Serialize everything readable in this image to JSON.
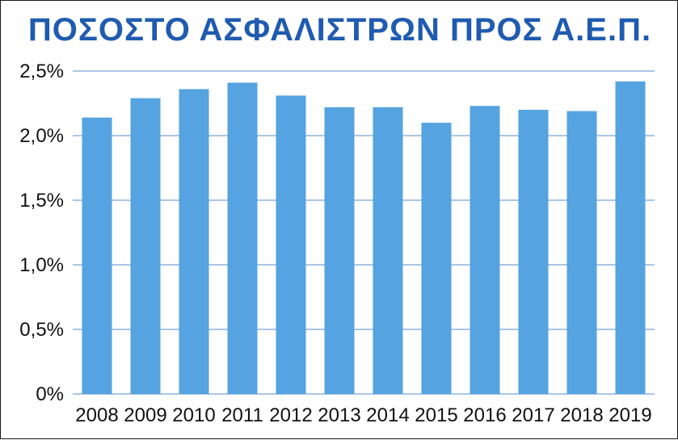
{
  "chart_data": {
    "type": "bar",
    "title": "ΠΟΣΟΣΤΟ ΑΣΦΑΛΙΣΤΡΩΝ ΠΡΟΣ Α.Ε.Π.",
    "xlabel": "",
    "ylabel": "",
    "categories": [
      "2008",
      "2009",
      "2010",
      "2011",
      "2012",
      "2013",
      "2014",
      "2015",
      "2016",
      "2017",
      "2018",
      "2019"
    ],
    "values": [
      2.14,
      2.29,
      2.36,
      2.41,
      2.31,
      2.22,
      2.22,
      2.1,
      2.23,
      2.2,
      2.19,
      2.42
    ],
    "ylim": [
      0,
      2.5
    ],
    "yticks": [
      0,
      0.5,
      1.0,
      1.5,
      2.0,
      2.5
    ],
    "ytick_labels": [
      "0%",
      "0,5%",
      "1,0%",
      "1,5%",
      "2,0%",
      "2,5%"
    ],
    "grid": true,
    "bar_color": "#55a3e0",
    "grid_color": "#8fb3de",
    "title_color": "#1f5bb0"
  }
}
